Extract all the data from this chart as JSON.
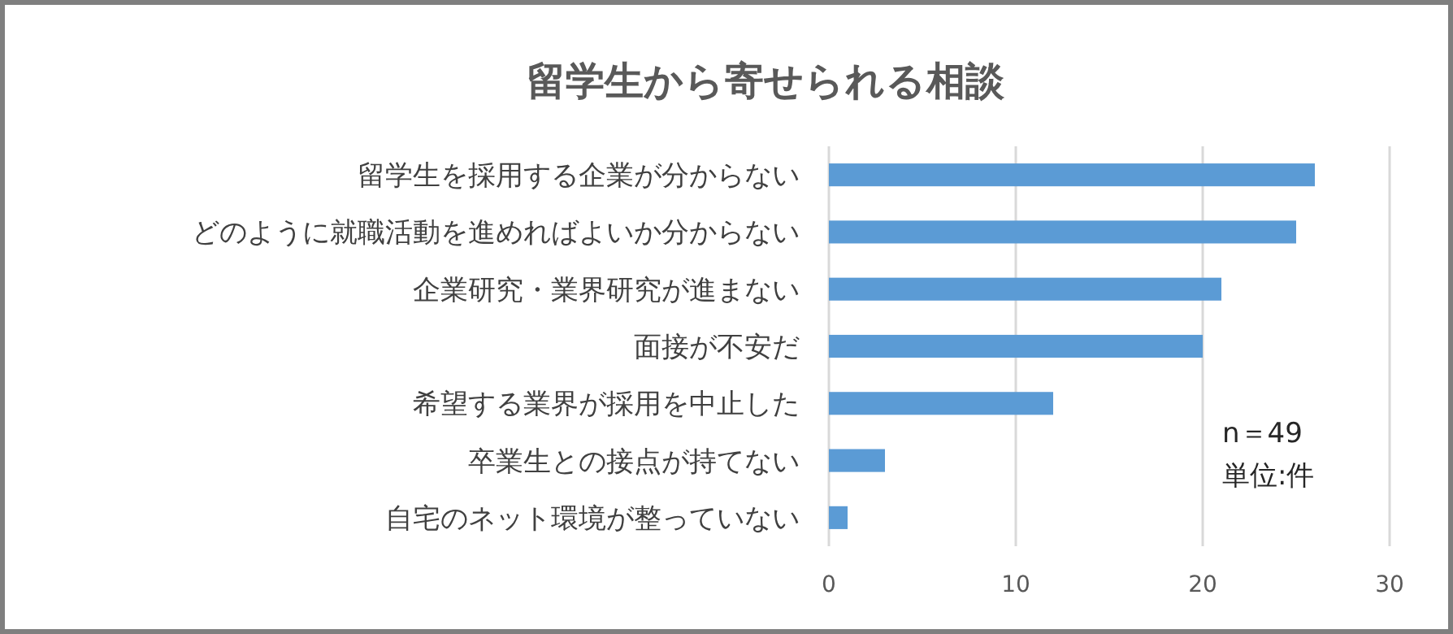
{
  "chart_data": {
    "type": "bar",
    "orientation": "horizontal",
    "title": "留学生から寄せられる相談",
    "categories": [
      "留学生を採用する企業が分からない",
      "どのように就職活動を進めればよいか分からない",
      "企業研究・業界研究が進まない",
      "面接が不安だ",
      "希望する業界が採用を中止した",
      "卒業生との接点が持てない",
      "自宅のネット環境が整っていない"
    ],
    "values": [
      26,
      25,
      21,
      20,
      12,
      3,
      1
    ],
    "color": "#5b9bd5",
    "xlim": [
      0,
      30
    ],
    "xticks": [
      0,
      10,
      20,
      30
    ],
    "grid": "x",
    "annotations": [
      "n＝49",
      "単位:件"
    ]
  }
}
